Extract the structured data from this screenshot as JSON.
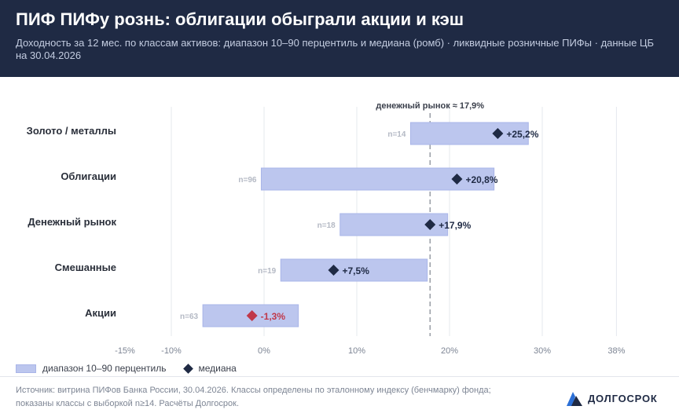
{
  "header": {
    "title": "ПИФ ПИФу рознь: облигации обыграли акции и кэш",
    "subtitle": "Доходность за 12 мес. по классам активов: диапазон 10–90 перцентиль и медиана (ромб) · ликвидные розничные ПИФы · данные ЦБ на 30.04.2026"
  },
  "chart_data": {
    "type": "range_dot",
    "x_unit": "%",
    "xlim": [
      -15,
      38
    ],
    "x_ticks": [
      {
        "value": -15,
        "label": "-15%"
      },
      {
        "value": -10,
        "label": "-10%"
      },
      {
        "value": 0,
        "label": "0%"
      },
      {
        "value": 10,
        "label": "10%"
      },
      {
        "value": 20,
        "label": "20%"
      },
      {
        "value": 30,
        "label": "30%"
      },
      {
        "value": 38,
        "label": "38%"
      }
    ],
    "reference_line": {
      "value": 17.9,
      "label": "денежный рынок ≈ 17,9%"
    },
    "rows": [
      {
        "category": "Золото / металлы",
        "n_label": "n=14",
        "p10": 15.8,
        "p90": 28.5,
        "median": 25.2,
        "median_label": "+25,2%",
        "highlight": false
      },
      {
        "category": "Облигации",
        "n_label": "n=96",
        "p10": -0.3,
        "p90": 24.8,
        "median": 20.8,
        "median_label": "+20,8%",
        "highlight": false
      },
      {
        "category": "Денежный рынок",
        "n_label": "n=18",
        "p10": 8.2,
        "p90": 19.8,
        "median": 17.9,
        "median_label": "+17,9%",
        "highlight": false
      },
      {
        "category": "Смешанные",
        "n_label": "n=19",
        "p10": 1.8,
        "p90": 17.6,
        "median": 7.5,
        "median_label": "+7,5%",
        "highlight": false
      },
      {
        "category": "Акции",
        "n_label": "n=63",
        "p10": -6.6,
        "p90": 3.7,
        "median": -1.3,
        "median_label": "-1,3%",
        "highlight": true
      }
    ],
    "colors": {
      "range": "#bcc6ee",
      "range_border": "#a9b5e8",
      "median": "#1f2a44",
      "median_negative": "#c0394a",
      "grid": "#e6e8ee"
    },
    "grid": true
  },
  "legend": {
    "range_label": "диапазон 10–90 перцентиль",
    "median_label": "медиана"
  },
  "footer": {
    "source": "Источник: витрина ПИФов Банка России, 30.04.2026. Классы определены по эталонному индексу (бенчмарку) фонда; показаны классы с выборкой n≥14. Расчёты Долгосрок.",
    "brand": "ДОЛГОСРОК",
    "logo_icon": "mountain-logo-icon"
  }
}
